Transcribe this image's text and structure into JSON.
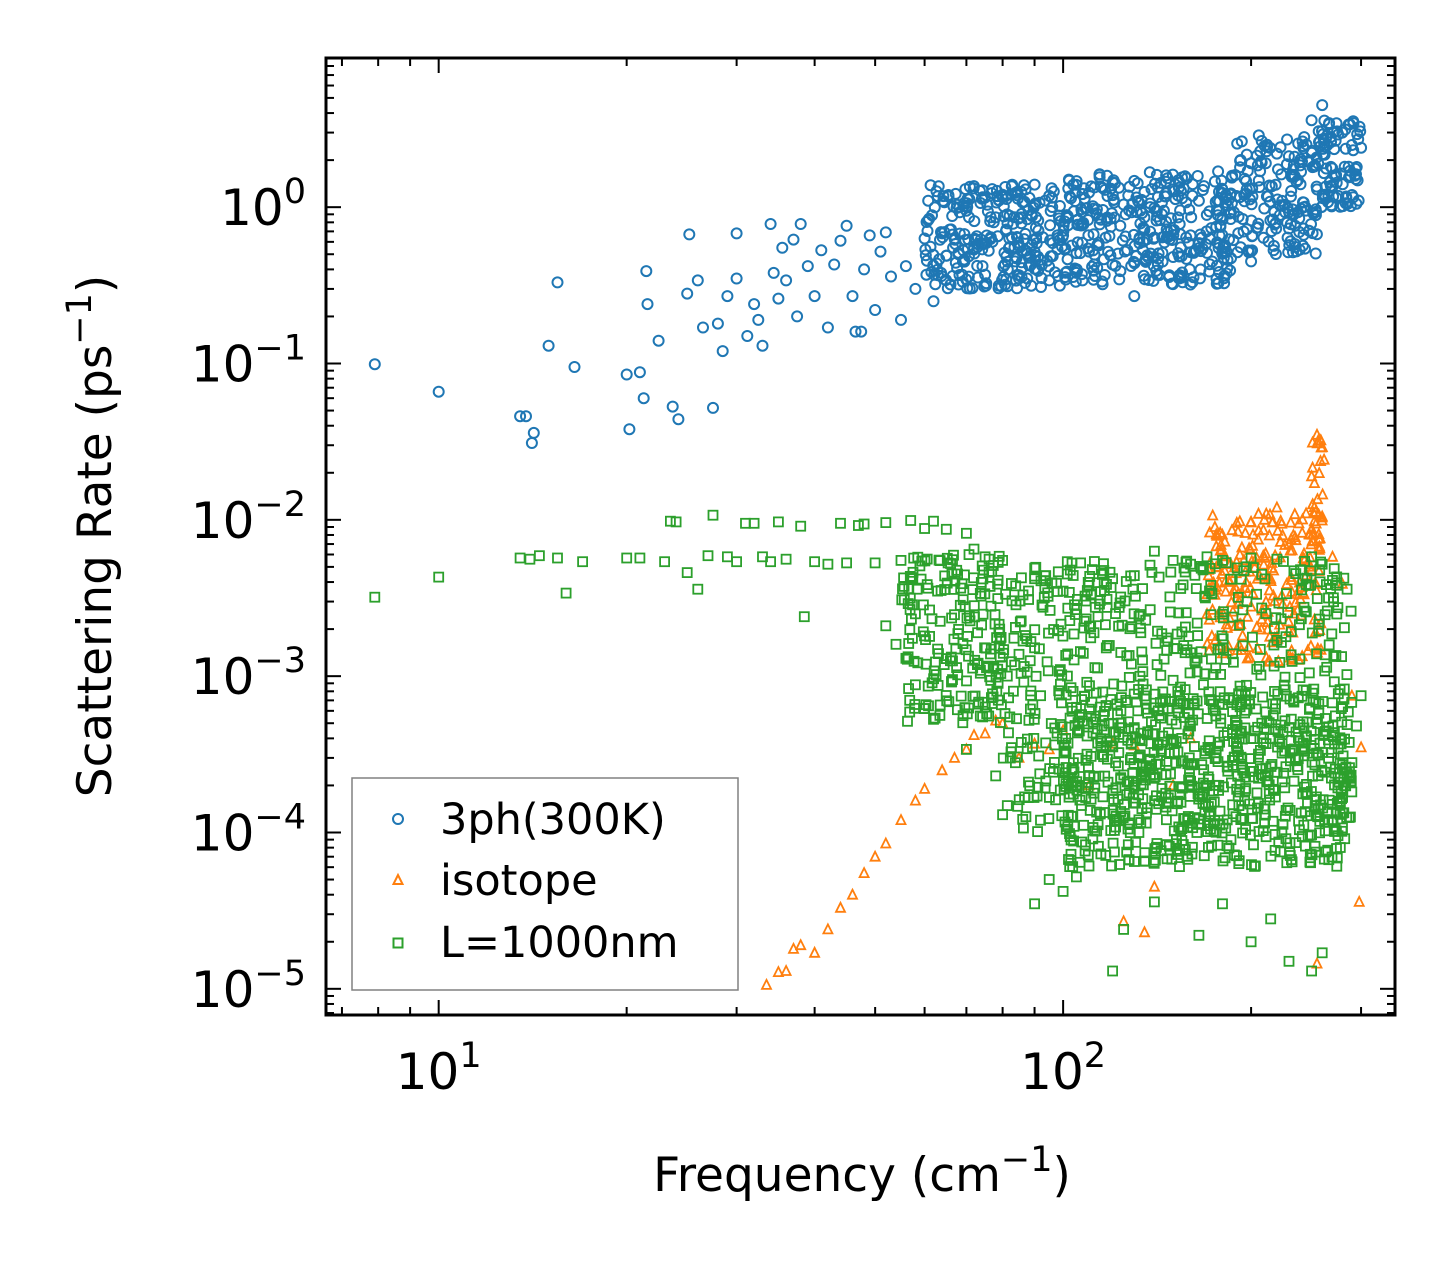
{
  "chart_data": {
    "type": "scatter",
    "xlabel": "Frequency (cm",
    "xlabel_sup": "−1",
    "xlabel_end": ")",
    "ylabel": "Scattering Rate (ps",
    "ylabel_sup": "−1",
    "ylabel_end": ")",
    "xscale": "log",
    "yscale": "log",
    "xlim": [
      6.6,
      340
    ],
    "ylim": [
      6.8e-06,
      9
    ],
    "x_ticks": [
      {
        "value": 10,
        "base": "10",
        "exp": "1"
      },
      {
        "value": 100,
        "base": "10",
        "exp": "2"
      }
    ],
    "y_ticks": [
      {
        "value": 1,
        "base": "10",
        "exp": "0"
      },
      {
        "value": 0.1,
        "base": "10",
        "exp": "−1"
      },
      {
        "value": 0.01,
        "base": "10",
        "exp": "−2"
      },
      {
        "value": 0.001,
        "base": "10",
        "exp": "−3"
      },
      {
        "value": 0.0001,
        "base": "10",
        "exp": "−4"
      },
      {
        "value": 1e-05,
        "base": "10",
        "exp": "−5"
      }
    ],
    "legend_position": "lower-left",
    "series": [
      {
        "name": "3ph(300K)",
        "marker": "circle",
        "color": "#1f77b4",
        "points": [
          [
            7.9,
            0.099
          ],
          [
            10,
            0.066
          ],
          [
            13.5,
            0.046
          ],
          [
            13.8,
            0.046
          ],
          [
            14.2,
            0.036
          ],
          [
            14.1,
            0.031
          ],
          [
            15,
            0.13
          ],
          [
            15.5,
            0.33
          ],
          [
            16.5,
            0.095
          ],
          [
            20,
            0.085
          ],
          [
            20.2,
            0.038
          ],
          [
            21,
            0.088
          ],
          [
            21.3,
            0.06
          ],
          [
            21.5,
            0.39
          ],
          [
            21.6,
            0.24
          ],
          [
            22.5,
            0.14
          ],
          [
            23.7,
            0.053
          ],
          [
            24.2,
            0.044
          ],
          [
            25,
            0.28
          ],
          [
            25.2,
            0.67
          ],
          [
            26,
            0.34
          ],
          [
            26.5,
            0.17
          ],
          [
            27.5,
            0.052
          ],
          [
            28,
            0.18
          ],
          [
            28.5,
            0.12
          ],
          [
            29,
            0.27
          ],
          [
            30,
            0.68
          ],
          [
            30,
            0.35
          ],
          [
            31.2,
            0.15
          ],
          [
            32,
            0.24
          ],
          [
            32.5,
            0.19
          ],
          [
            33,
            0.13
          ],
          [
            34,
            0.78
          ],
          [
            34.4,
            0.38
          ],
          [
            35,
            0.26
          ],
          [
            35.5,
            0.55
          ],
          [
            36,
            0.34
          ],
          [
            37,
            0.62
          ],
          [
            37.5,
            0.2
          ],
          [
            38,
            0.78
          ],
          [
            39,
            0.42
          ],
          [
            40,
            0.27
          ],
          [
            41,
            0.53
          ],
          [
            42,
            0.17
          ],
          [
            43,
            0.43
          ],
          [
            44,
            0.61
          ],
          [
            45,
            0.76
          ],
          [
            46,
            0.27
          ],
          [
            46.5,
            0.16
          ],
          [
            47.5,
            0.16
          ],
          [
            48,
            0.4
          ],
          [
            49,
            0.66
          ],
          [
            50,
            0.22
          ],
          [
            51,
            0.52
          ],
          [
            52,
            0.69
          ],
          [
            53,
            0.36
          ],
          [
            55,
            0.19
          ],
          [
            56,
            0.42
          ],
          [
            58,
            0.3
          ],
          [
            60,
            0.63
          ],
          [
            62,
            0.25
          ],
          [
            64,
            0.68
          ],
          [
            65,
            0.49
          ],
          [
            68,
            0.32
          ],
          [
            70,
            0.95
          ],
          [
            72,
            0.55
          ],
          [
            75,
            0.37
          ],
          [
            78,
            0.86
          ],
          [
            80,
            1.2
          ],
          [
            82,
            0.63
          ],
          [
            85,
            0.35
          ],
          [
            88,
            0.96
          ],
          [
            92,
            0.46
          ],
          [
            95,
            1.18
          ],
          [
            100,
            0.66
          ],
          [
            105,
            0.38
          ],
          [
            108,
            1.32
          ],
          [
            110,
            0.52
          ],
          [
            115,
            0.83
          ],
          [
            120,
            0.43
          ],
          [
            125,
            1.04
          ],
          [
            130,
            0.27
          ],
          [
            135,
            1.25
          ],
          [
            140,
            0.64
          ],
          [
            145,
            0.95
          ],
          [
            150,
            0.48
          ],
          [
            155,
            1.55
          ],
          [
            160,
            0.66
          ],
          [
            165,
            1.1
          ],
          [
            170,
            0.51
          ],
          [
            175,
            1.46
          ],
          [
            180,
            0.83
          ],
          [
            190,
            2.55
          ],
          [
            195,
            1.2
          ],
          [
            200,
            0.45
          ],
          [
            205,
            1.85
          ],
          [
            210,
            0.98
          ],
          [
            220,
            2.2
          ],
          [
            230,
            0.73
          ],
          [
            240,
            1.4
          ],
          [
            250,
            3.6
          ],
          [
            255,
            1.3
          ],
          [
            260,
            4.5
          ],
          [
            265,
            2.5
          ],
          [
            270,
            1.35
          ],
          [
            280,
            3.0
          ],
          [
            290,
            2.5
          ],
          [
            300,
            2.4
          ]
        ],
        "bands": [
          {
            "from": 60,
            "to": 100,
            "low": 0.3,
            "high": 1.4
          },
          {
            "from": 100,
            "to": 190,
            "low": 0.32,
            "high": 1.7
          },
          {
            "from": 190,
            "to": 255,
            "low": 0.5,
            "high": 2.9
          },
          {
            "from": 255,
            "to": 300,
            "low": 1.0,
            "high": 3.6
          }
        ]
      },
      {
        "name": "isotope",
        "marker": "triangle",
        "color": "#ff7f0e",
        "points": [
          [
            33.5,
            1.06e-05
          ],
          [
            35,
            1.28e-05
          ],
          [
            36,
            1.3e-05
          ],
          [
            37,
            1.8e-05
          ],
          [
            38,
            1.9e-05
          ],
          [
            40,
            1.7e-05
          ],
          [
            42,
            2.4e-05
          ],
          [
            44,
            3.3e-05
          ],
          [
            46,
            4e-05
          ],
          [
            48,
            5.5e-05
          ],
          [
            50,
            7e-05
          ],
          [
            52,
            8.5e-05
          ],
          [
            55,
            0.00012
          ],
          [
            58,
            0.00016
          ],
          [
            60,
            0.00019
          ],
          [
            64,
            0.00025
          ],
          [
            67,
            0.0003
          ],
          [
            70,
            0.00034
          ],
          [
            72,
            0.00042
          ],
          [
            75,
            0.00043
          ],
          [
            78,
            0.00052
          ],
          [
            80,
            0.0005
          ],
          [
            85,
            0.0003
          ],
          [
            90,
            0.00037
          ],
          [
            95,
            0.00034
          ],
          [
            100,
            0.00045
          ],
          [
            110,
            0.0002
          ],
          [
            120,
            0.00037
          ],
          [
            125,
            2.7e-05
          ],
          [
            130,
            0.00036
          ],
          [
            135,
            2.3e-05
          ],
          [
            140,
            4.5e-05
          ],
          [
            150,
            0.0002
          ],
          [
            160,
            0.0004
          ],
          [
            170,
            0.0025
          ],
          [
            175,
            0.009
          ],
          [
            180,
            0.0014
          ],
          [
            185,
            0.004
          ],
          [
            200,
            0.0097
          ],
          [
            210,
            0.01
          ],
          [
            220,
            0.012
          ],
          [
            230,
            0.007
          ],
          [
            240,
            0.0031
          ],
          [
            245,
            0.011
          ],
          [
            250,
            0.019
          ],
          [
            255,
            0.035
          ],
          [
            260,
            0.0105
          ],
          [
            270,
            0.0058
          ],
          [
            280,
            0.0039
          ],
          [
            290,
            0.00075
          ],
          [
            300,
            0.00035
          ],
          [
            298,
            3.6e-05
          ],
          [
            255,
            1.45e-05
          ]
        ],
        "bands": [
          {
            "from": 170,
            "to": 260,
            "low": 0.0012,
            "high": 0.011
          },
          {
            "from": 250,
            "to": 262,
            "low": 0.008,
            "high": 0.033
          }
        ]
      },
      {
        "name": "L=1000nm",
        "marker": "square",
        "color": "#2ca02c",
        "points": [
          [
            7.9,
            0.0032
          ],
          [
            10,
            0.0043
          ],
          [
            13.5,
            0.0057
          ],
          [
            14,
            0.0056
          ],
          [
            14.5,
            0.0059
          ],
          [
            15.5,
            0.0057
          ],
          [
            16,
            0.0034
          ],
          [
            17,
            0.0054
          ],
          [
            20,
            0.0057
          ],
          [
            21,
            0.0057
          ],
          [
            23,
            0.0054
          ],
          [
            23.5,
            0.0098
          ],
          [
            24,
            0.0097
          ],
          [
            25,
            0.0046
          ],
          [
            26,
            0.0036
          ],
          [
            27,
            0.0059
          ],
          [
            27.5,
            0.0107
          ],
          [
            29,
            0.0058
          ],
          [
            30,
            0.0054
          ],
          [
            31,
            0.0095
          ],
          [
            32,
            0.0095
          ],
          [
            33,
            0.0058
          ],
          [
            34,
            0.0054
          ],
          [
            35,
            0.0097
          ],
          [
            36,
            0.0056
          ],
          [
            38,
            0.0091
          ],
          [
            38.5,
            0.0024
          ],
          [
            40,
            0.0054
          ],
          [
            42,
            0.0052
          ],
          [
            44,
            0.0095
          ],
          [
            45,
            0.0053
          ],
          [
            47,
            0.0092
          ],
          [
            48,
            0.0094
          ],
          [
            50,
            0.0053
          ],
          [
            52,
            0.0096
          ],
          [
            55,
            0.0055
          ],
          [
            57,
            0.0099
          ],
          [
            60,
            0.0088
          ],
          [
            62,
            0.0098
          ],
          [
            65,
            0.0087
          ],
          [
            70,
            0.0082
          ],
          [
            72,
            0.0065
          ],
          [
            75,
            0.0058
          ],
          [
            80,
            0.0055
          ],
          [
            90,
            0.0042
          ],
          [
            100,
            0.0035
          ],
          [
            110,
            0.0038
          ],
          [
            120,
            0.0042
          ],
          [
            130,
            0.0044
          ],
          [
            140,
            0.0063
          ],
          [
            150,
            0.0055
          ],
          [
            160,
            0.0052
          ],
          [
            170,
            0.0058
          ],
          [
            180,
            0.0055
          ],
          [
            200,
            0.0057
          ],
          [
            220,
            0.0056
          ],
          [
            240,
            0.0048
          ],
          [
            250,
            0.0058
          ],
          [
            260,
            0.0052
          ],
          [
            270,
            0.0041
          ],
          [
            285,
            0.0036
          ],
          [
            300,
            0.00075
          ],
          [
            295,
            0.00048
          ],
          [
            290,
            0.00028
          ],
          [
            285,
            0.00049
          ],
          [
            260,
            1.7e-05
          ],
          [
            250,
            1.3e-05
          ],
          [
            230,
            1.5e-05
          ],
          [
            215,
            2.8e-05
          ],
          [
            200,
            2e-05
          ],
          [
            180,
            3.5e-05
          ],
          [
            165,
            2.2e-05
          ],
          [
            140,
            3.6e-05
          ],
          [
            125,
            2.4e-05
          ],
          [
            120,
            1.3e-05
          ],
          [
            110,
            6.1e-05
          ],
          [
            105,
            5.2e-05
          ],
          [
            100,
            4.2e-05
          ],
          [
            95,
            5e-05
          ],
          [
            90,
            3.5e-05
          ],
          [
            88,
            0.00021
          ],
          [
            80,
            0.00013
          ],
          [
            78,
            0.00023
          ],
          [
            70,
            0.00034
          ],
          [
            62,
            0.00053
          ],
          [
            60,
            0.00062
          ],
          [
            58,
            0.00088
          ],
          [
            56,
            0.0013
          ],
          [
            54,
            0.0016
          ],
          [
            52,
            0.0021
          ]
        ],
        "bands": [
          {
            "from": 55,
            "to": 80,
            "low": 0.0005,
            "high": 0.006
          },
          {
            "from": 80,
            "to": 290,
            "low": 0.0001,
            "high": 0.0055
          },
          {
            "from": 100,
            "to": 290,
            "low": 6e-05,
            "high": 0.0008
          }
        ]
      }
    ]
  }
}
